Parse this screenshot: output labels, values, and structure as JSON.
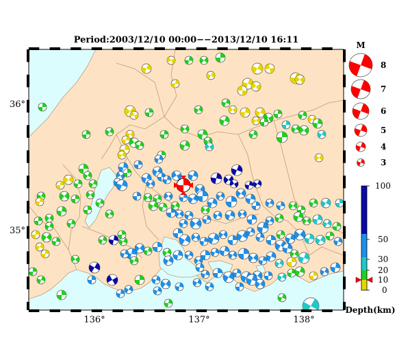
{
  "title": "Period:2003/12/10 00:00−−2013/12/10 16:11",
  "lon_ticks": [
    "136°",
    "137°",
    "138°"
  ],
  "lat_ticks": [
    "36°",
    "35°"
  ],
  "legend": {
    "title": "M",
    "magnitudes": [
      "8",
      "7",
      "6",
      "5",
      "4",
      "3"
    ]
  },
  "colorbar": {
    "ticks": [
      "100",
      "50",
      "30",
      "20",
      "10",
      "0"
    ],
    "label": "Depth(km)",
    "colors": {
      "0-10": "#e8d400",
      "10-20": "#20d020",
      "20-30": "#20c8c8",
      "30-50": "#1f8fe8",
      "50-100": "#0a0aa8"
    }
  },
  "map_colors": {
    "land": "#fde3c3",
    "sea": "#dcfdfd",
    "border": "#c09a7a"
  },
  "mainshock_color": "#ff0000"
}
